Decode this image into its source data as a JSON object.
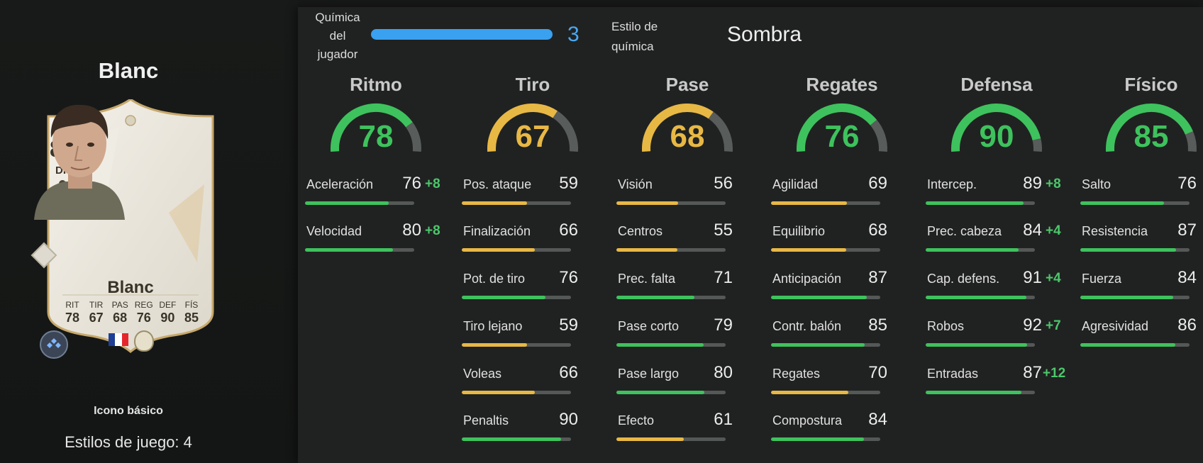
{
  "player": {
    "name": "Blanc",
    "card_type": "Icono básico",
    "playstyles_label": "Estilos de juego: 4"
  },
  "card": {
    "rating": "88",
    "position": "DFC",
    "name": "Blanc",
    "stats": [
      {
        "label": "RIT",
        "value": "78"
      },
      {
        "label": "TIR",
        "value": "67"
      },
      {
        "label": "PAS",
        "value": "68"
      },
      {
        "label": "REG",
        "value": "76"
      },
      {
        "label": "DEF",
        "value": "90"
      },
      {
        "label": "FÍS",
        "value": "85"
      }
    ],
    "nation_flag_colors": [
      "#1f3f95",
      "#ffffff",
      "#e4262c"
    ]
  },
  "chemistry": {
    "label": "Química del jugador",
    "value": "3",
    "style_label": "Estilo de química",
    "style_value": "Sombra",
    "bar_color": "#3aa0f0"
  },
  "colors": {
    "green": "#3ec25d",
    "yellow": "#e8b845",
    "gauge_track": "#585c5a",
    "boost": "#4cc76b"
  },
  "categories": [
    {
      "title": "Ritmo",
      "value": "78",
      "color": "green",
      "attributes": [
        {
          "name": "Aceleración",
          "value": "76",
          "boost": "+8",
          "color": "green"
        },
        {
          "name": "Velocidad",
          "value": "80",
          "boost": "+8",
          "color": "green"
        }
      ]
    },
    {
      "title": "Tiro",
      "value": "67",
      "color": "yellow",
      "attributes": [
        {
          "name": "Pos. ataque",
          "value": "59",
          "boost": "",
          "color": "yellow"
        },
        {
          "name": "Finalización",
          "value": "66",
          "boost": "",
          "color": "yellow"
        },
        {
          "name": "Pot. de tiro",
          "value": "76",
          "boost": "",
          "color": "green"
        },
        {
          "name": "Tiro lejano",
          "value": "59",
          "boost": "",
          "color": "yellow"
        },
        {
          "name": "Voleas",
          "value": "66",
          "boost": "",
          "color": "yellow"
        },
        {
          "name": "Penaltis",
          "value": "90",
          "boost": "",
          "color": "green"
        }
      ]
    },
    {
      "title": "Pase",
      "value": "68",
      "color": "yellow",
      "attributes": [
        {
          "name": "Visión",
          "value": "56",
          "boost": "",
          "color": "yellow"
        },
        {
          "name": "Centros",
          "value": "55",
          "boost": "",
          "color": "yellow"
        },
        {
          "name": "Prec. falta",
          "value": "71",
          "boost": "",
          "color": "green"
        },
        {
          "name": "Pase corto",
          "value": "79",
          "boost": "",
          "color": "green"
        },
        {
          "name": "Pase largo",
          "value": "80",
          "boost": "",
          "color": "green"
        },
        {
          "name": "Efecto",
          "value": "61",
          "boost": "",
          "color": "yellow"
        }
      ]
    },
    {
      "title": "Regates",
      "value": "76",
      "color": "green",
      "attributes": [
        {
          "name": "Agilidad",
          "value": "69",
          "boost": "",
          "color": "yellow"
        },
        {
          "name": "Equilibrio",
          "value": "68",
          "boost": "",
          "color": "yellow"
        },
        {
          "name": "Anticipación",
          "value": "87",
          "boost": "",
          "color": "green"
        },
        {
          "name": "Contr. balón",
          "value": "85",
          "boost": "",
          "color": "green"
        },
        {
          "name": "Regates",
          "value": "70",
          "boost": "",
          "color": "yellow"
        },
        {
          "name": "Compostura",
          "value": "84",
          "boost": "",
          "color": "green"
        }
      ]
    },
    {
      "title": "Defensa",
      "value": "90",
      "color": "green",
      "attributes": [
        {
          "name": "Intercep.",
          "value": "89",
          "boost": "+8",
          "color": "green"
        },
        {
          "name": "Prec. cabeza",
          "value": "84",
          "boost": "+4",
          "color": "green"
        },
        {
          "name": "Cap. defens.",
          "value": "91",
          "boost": "+4",
          "color": "green"
        },
        {
          "name": "Robos",
          "value": "92",
          "boost": "+7",
          "color": "green"
        },
        {
          "name": "Entradas",
          "value": "87",
          "boost": "+12",
          "color": "green"
        }
      ]
    },
    {
      "title": "Físico",
      "value": "85",
      "color": "green",
      "attributes": [
        {
          "name": "Salto",
          "value": "76",
          "boost": "",
          "color": "green"
        },
        {
          "name": "Resistencia",
          "value": "87",
          "boost": "",
          "color": "green"
        },
        {
          "name": "Fuerza",
          "value": "84",
          "boost": "",
          "color": "green"
        },
        {
          "name": "Agresividad",
          "value": "86",
          "boost": "",
          "color": "green"
        }
      ]
    }
  ]
}
